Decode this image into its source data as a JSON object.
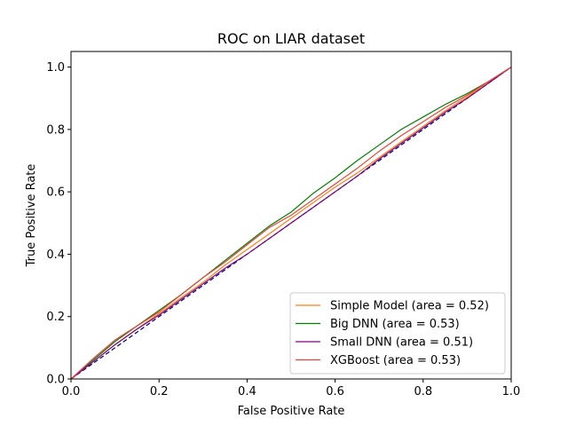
{
  "chart_data": {
    "type": "line",
    "title": "ROC on LIAR dataset",
    "xlabel": "False Positive Rate",
    "ylabel": "True Positive Rate",
    "xlim": [
      0.0,
      1.0
    ],
    "ylim": [
      0.0,
      1.05
    ],
    "xticks": [
      "0.0",
      "0.2",
      "0.4",
      "0.6",
      "0.8",
      "1.0"
    ],
    "yticks": [
      "0.0",
      "0.2",
      "0.4",
      "0.6",
      "0.8",
      "1.0"
    ],
    "grid": false,
    "legend_position": "lower right",
    "diagonal": {
      "x": [
        0,
        1
      ],
      "y": [
        0,
        1
      ],
      "color": "#000080",
      "style": "dashed"
    },
    "series": [
      {
        "name": "Simple Model (area = 0.52)",
        "color": "#ff7f0e",
        "x": [
          0,
          0.05,
          0.1,
          0.15,
          0.2,
          0.25,
          0.3,
          0.35,
          0.4,
          0.45,
          0.5,
          0.55,
          0.6,
          0.65,
          0.7,
          0.75,
          0.8,
          0.85,
          0.9,
          0.95,
          1.0
        ],
        "y": [
          0,
          0.055,
          0.11,
          0.16,
          0.21,
          0.26,
          0.31,
          0.365,
          0.415,
          0.465,
          0.515,
          0.565,
          0.615,
          0.66,
          0.71,
          0.76,
          0.81,
          0.86,
          0.905,
          0.955,
          1.0
        ]
      },
      {
        "name": "Big DNN (area = 0.53)",
        "color": "#008000",
        "x": [
          0,
          0.05,
          0.1,
          0.15,
          0.2,
          0.25,
          0.3,
          0.35,
          0.4,
          0.45,
          0.5,
          0.55,
          0.6,
          0.65,
          0.7,
          0.75,
          0.8,
          0.85,
          0.9,
          0.95,
          1.0
        ],
        "y": [
          0,
          0.06,
          0.12,
          0.17,
          0.22,
          0.27,
          0.325,
          0.38,
          0.435,
          0.49,
          0.535,
          0.595,
          0.645,
          0.7,
          0.75,
          0.8,
          0.84,
          0.88,
          0.915,
          0.955,
          1.0
        ]
      },
      {
        "name": "Small DNN (area = 0.51)",
        "color": "#800080",
        "x": [
          0,
          0.05,
          0.1,
          0.15,
          0.2,
          0.25,
          0.3,
          0.35,
          0.4,
          0.45,
          0.5,
          0.55,
          0.6,
          0.65,
          0.7,
          0.75,
          0.8,
          0.85,
          0.9,
          0.95,
          1.0
        ],
        "y": [
          0,
          0.055,
          0.11,
          0.16,
          0.205,
          0.255,
          0.305,
          0.355,
          0.4,
          0.45,
          0.5,
          0.55,
          0.6,
          0.65,
          0.705,
          0.755,
          0.805,
          0.855,
          0.9,
          0.95,
          1.0
        ]
      },
      {
        "name": "XGBoost (area = 0.53)",
        "color": "#e8433c",
        "x": [
          0,
          0.05,
          0.1,
          0.15,
          0.2,
          0.25,
          0.3,
          0.35,
          0.4,
          0.45,
          0.5,
          0.55,
          0.6,
          0.65,
          0.7,
          0.75,
          0.8,
          0.85,
          0.9,
          0.95,
          1.0
        ],
        "y": [
          0,
          0.065,
          0.125,
          0.17,
          0.215,
          0.27,
          0.325,
          0.375,
          0.43,
          0.485,
          0.525,
          0.575,
          0.625,
          0.675,
          0.73,
          0.78,
          0.825,
          0.87,
          0.91,
          0.955,
          1.0
        ]
      }
    ]
  }
}
